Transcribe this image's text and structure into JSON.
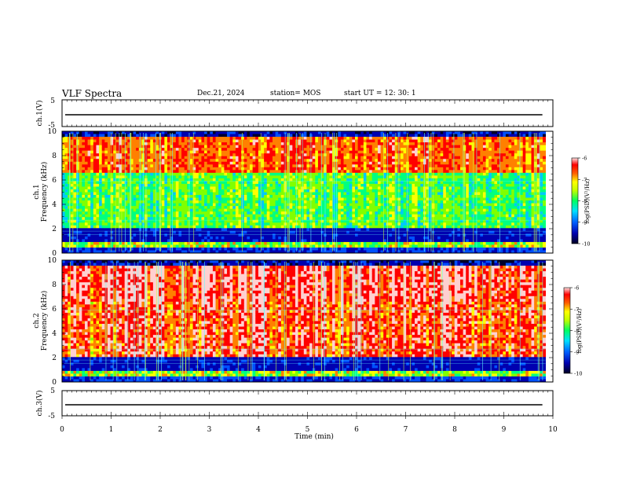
{
  "header": {
    "title": "VLF Spectra",
    "date": "Dec.21, 2024",
    "station": "station= MOS",
    "start": "start  UT =   12: 30: 1"
  },
  "chart_data": [
    {
      "type": "line",
      "panel": "ch1-waveform",
      "ylabel": "ch.1(V)",
      "ylim": [
        -5,
        5
      ],
      "yticks": [
        5,
        -5
      ],
      "xlim": [
        0,
        10
      ],
      "series": [
        {
          "values": [
            0,
            0
          ]
        }
      ]
    },
    {
      "type": "heatmap",
      "panel": "ch1-spectrogram",
      "ylabel": "ch.1\nFrequency (kHz)",
      "ylabel_line1": "ch.1",
      "ylabel_line2": "Frequency (kHz)",
      "ylim": [
        0,
        10
      ],
      "yticks": [
        0,
        2,
        4,
        6,
        8,
        10
      ],
      "xlim": [
        0,
        9.85
      ],
      "colorbar": {
        "label": "log(PSD)(V²/Hz)",
        "ticks": [
          -6,
          -7,
          -8,
          -9,
          -10
        ],
        "range": [
          -10,
          -6
        ]
      }
    },
    {
      "type": "heatmap",
      "panel": "ch2-spectrogram",
      "ylabel": "ch.2\nFrequency (kHz)",
      "ylabel_line1": "ch.2",
      "ylabel_line2": "Frequency (kHz)",
      "ylim": [
        0,
        10
      ],
      "yticks": [
        0,
        2,
        4,
        6,
        8,
        10
      ],
      "xlim": [
        0,
        9.85
      ],
      "colorbar": {
        "label": "log(PSD)(V²/Hz)",
        "ticks": [
          -6,
          -7,
          -8,
          -9,
          -10
        ],
        "range": [
          -10,
          -6
        ]
      }
    },
    {
      "type": "line",
      "panel": "ch3-waveform",
      "ylabel": "ch.3(V)",
      "ylim": [
        -5,
        5
      ],
      "yticks": [
        5,
        -5
      ],
      "xlim": [
        0,
        10
      ],
      "xlabel": "Time (min)",
      "xticks": [
        0,
        1,
        2,
        3,
        4,
        5,
        6,
        7,
        8,
        9,
        10
      ],
      "series": [
        {
          "values": [
            0,
            0
          ]
        }
      ]
    }
  ],
  "colors": {
    "colormap": [
      "#00002a",
      "#0000b0",
      "#0050ff",
      "#00c8ff",
      "#00ff80",
      "#80ff00",
      "#ffff00",
      "#ff8000",
      "#ff0000",
      "#ffd0d0"
    ]
  }
}
